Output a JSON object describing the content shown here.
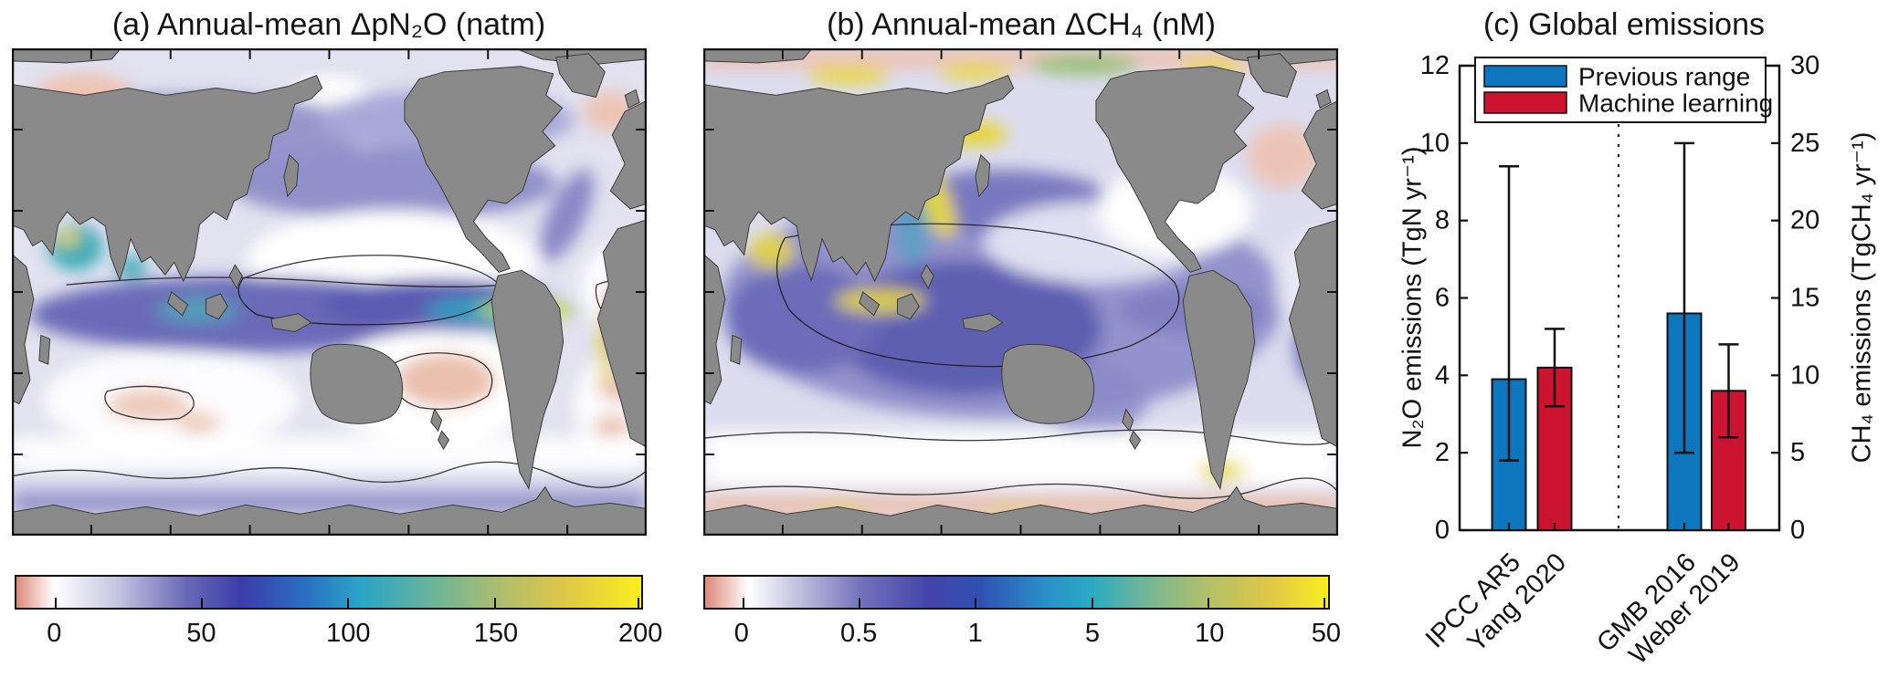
{
  "colors": {
    "series_blue": "#0e76bd",
    "series_red": "#cc1330",
    "land_gray": "#8a8a8a",
    "contour_black": "#161616",
    "frame_black": "#111111"
  },
  "chart_data": [
    {
      "type": "heatmap",
      "panel": "a",
      "title": "(a) Annual-mean ΔpN₂O (natm)",
      "description": "Pacific-centered global ocean map of annual-mean ΔpN₂O; high values (blue→teal→yellow) along equatorial and eastern-boundary upwelling zones, near-zero (white) subtropical gyres, weakly negative (pink) gyre cores and polar patches; land in gray with black contour lines",
      "colorbar": {
        "ticks": [
          "0",
          "50",
          "100",
          "150",
          "200"
        ],
        "tick_positions_pct": [
          6.3,
          29.7,
          53.1,
          76.6,
          99.6
        ],
        "gradient": [
          {
            "pos": 0,
            "color": "#dd8a78"
          },
          {
            "pos": 6,
            "color": "#ffffff"
          },
          {
            "pos": 16,
            "color": "#c6c6e2"
          },
          {
            "pos": 27,
            "color": "#6a6ab8"
          },
          {
            "pos": 36,
            "color": "#3c3caa"
          },
          {
            "pos": 46,
            "color": "#2a6ec2"
          },
          {
            "pos": 55,
            "color": "#2aa4c8"
          },
          {
            "pos": 66,
            "color": "#66b49c"
          },
          {
            "pos": 76,
            "color": "#a6bc74"
          },
          {
            "pos": 87,
            "color": "#dcc648"
          },
          {
            "pos": 100,
            "color": "#f8ee20"
          }
        ]
      }
    },
    {
      "type": "heatmap",
      "panel": "b",
      "title": "(b) Annual-mean ΔCH₄ (nM)",
      "description": "Pacific-centered global ocean map of annual-mean ΔCH₄; broad purple tropical/subtropical excess, bright yellow coastal and Arctic shelf margins, white Southern Ocean band and pink near Antarctica; land in gray with black contour lines",
      "colorbar": {
        "ticks": [
          "0",
          "0.5",
          "1",
          "5",
          "10",
          "50"
        ],
        "tick_positions_pct": [
          6.1,
          24.8,
          43.4,
          62.1,
          80.8,
          99.4
        ],
        "gradient": [
          {
            "pos": 0,
            "color": "#dd8a78"
          },
          {
            "pos": 7,
            "color": "#ffffff"
          },
          {
            "pos": 15,
            "color": "#c0c0de"
          },
          {
            "pos": 25,
            "color": "#7272bc"
          },
          {
            "pos": 36,
            "color": "#4444aa"
          },
          {
            "pos": 44,
            "color": "#3050b2"
          },
          {
            "pos": 54,
            "color": "#2a8cc8"
          },
          {
            "pos": 62,
            "color": "#2aaac4"
          },
          {
            "pos": 72,
            "color": "#7cb890"
          },
          {
            "pos": 81,
            "color": "#b4c066"
          },
          {
            "pos": 91,
            "color": "#e0c846"
          },
          {
            "pos": 100,
            "color": "#f8ee20"
          }
        ]
      }
    },
    {
      "type": "bar",
      "panel": "c",
      "title": "(c) Global emissions",
      "categories": [
        "IPCC AR5",
        "Yang 2020",
        "GMB 2016",
        "Weber 2019"
      ],
      "bars": [
        {
          "category": "IPCC AR5",
          "legend": "Previous range",
          "axis": "left",
          "value": 3.9,
          "err_low": 1.8,
          "err_high": 9.4,
          "units": "TgN yr⁻¹"
        },
        {
          "category": "Yang 2020",
          "legend": "Machine learning",
          "axis": "left",
          "value": 4.2,
          "err_low": 3.2,
          "err_high": 5.2,
          "units": "TgN yr⁻¹"
        },
        {
          "category": "GMB 2016",
          "legend": "Previous range",
          "axis": "right",
          "value": 14,
          "err_low": 5,
          "err_high": 25,
          "units": "TgCH₄ yr⁻¹"
        },
        {
          "category": "Weber 2019",
          "legend": "Machine learning",
          "axis": "right",
          "value": 9,
          "err_low": 6,
          "err_high": 12,
          "units": "TgCH₄ yr⁻¹"
        }
      ],
      "left_axis": {
        "label": "N₂O emissions (TgN yr⁻¹)",
        "range": [
          0,
          12
        ],
        "ticks": [
          0,
          2,
          4,
          6,
          8,
          10,
          12
        ]
      },
      "right_axis": {
        "label": "CH₄ emissions (TgCH₄ yr⁻¹)",
        "range": [
          0,
          30
        ],
        "ticks": [
          0,
          5,
          10,
          15,
          20,
          25,
          30
        ]
      },
      "legend": [
        {
          "label": "Previous range",
          "color": "#0e76bd"
        },
        {
          "label": "Machine learning",
          "color": "#cc1330"
        }
      ],
      "separator": {
        "style": "dotted",
        "between": [
          "Yang 2020",
          "GMB 2016"
        ]
      },
      "grid": false,
      "legend_position": "top"
    }
  ]
}
